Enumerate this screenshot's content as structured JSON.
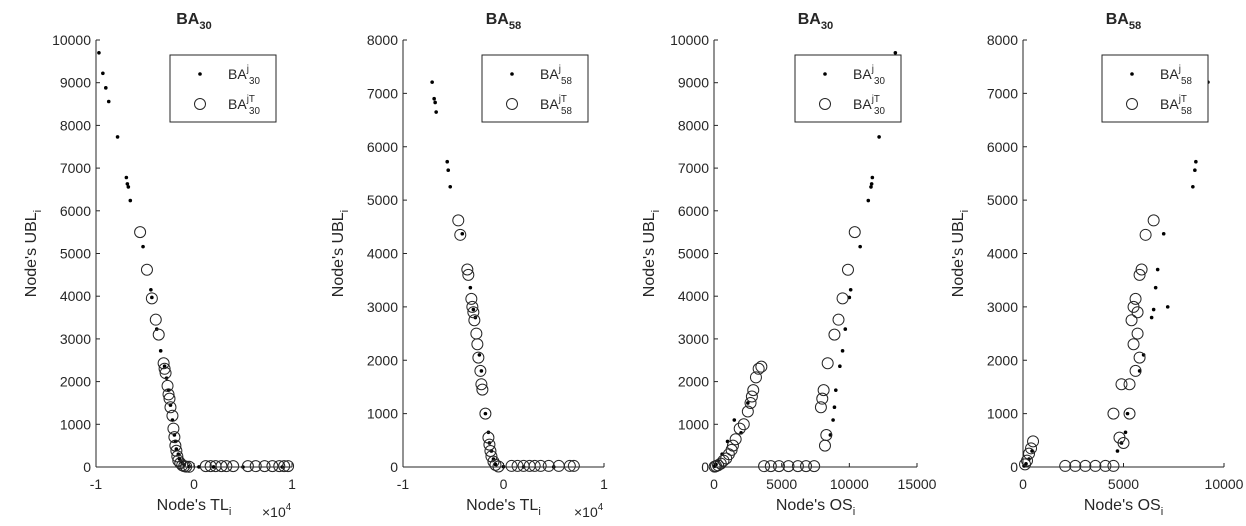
{
  "chart_data": [
    {
      "type": "scatter",
      "title": "BA",
      "title_sub": "30",
      "xlabel": "Node's TL",
      "xlabel_sub": "i",
      "x_multiplier": "×10",
      "x_multiplier_exp": "4",
      "ylabel": "Node's UBL",
      "ylabel_sub": "i",
      "xlim": [
        -1,
        1
      ],
      "ylim": [
        0,
        10000
      ],
      "xticks": [
        "-1",
        "0",
        "1"
      ],
      "yticks": [
        "0",
        "1000",
        "2000",
        "3000",
        "4000",
        "5000",
        "6000",
        "7000",
        "8000",
        "9000",
        "10000"
      ],
      "legend_position": "top-right",
      "series": [
        {
          "name": "BA",
          "name_sup": "j",
          "name_sub": "30",
          "marker": "dot",
          "points": [
            [
              -0.97,
              9700
            ],
            [
              -0.93,
              9220
            ],
            [
              -0.9,
              8880
            ],
            [
              -0.87,
              8560
            ],
            [
              -0.78,
              7730
            ],
            [
              -0.69,
              6780
            ],
            [
              -0.68,
              6630
            ],
            [
              -0.67,
              6560
            ],
            [
              -0.65,
              6240
            ],
            [
              -0.52,
              5160
            ],
            [
              -0.44,
              4150
            ],
            [
              -0.43,
              3970
            ],
            [
              -0.38,
              3230
            ],
            [
              -0.34,
              2720
            ],
            [
              -0.3,
              2360
            ],
            [
              -0.28,
              2080
            ],
            [
              -0.26,
              1800
            ],
            [
              -0.24,
              1450
            ],
            [
              -0.22,
              1100
            ],
            [
              -0.2,
              750
            ],
            [
              -0.19,
              600
            ],
            [
              -0.18,
              420
            ],
            [
              -0.16,
              300
            ],
            [
              -0.15,
              200
            ],
            [
              -0.13,
              120
            ],
            [
              -0.1,
              50
            ],
            [
              -0.05,
              10
            ],
            [
              0.05,
              2
            ],
            [
              0.2,
              1
            ],
            [
              0.5,
              0
            ],
            [
              0.9,
              0
            ]
          ]
        },
        {
          "name": "BA",
          "name_sup": "jT",
          "name_sub": "30",
          "marker": "circle",
          "points": [
            [
              -0.55,
              5500
            ],
            [
              -0.48,
              4620
            ],
            [
              -0.43,
              3950
            ],
            [
              -0.39,
              3450
            ],
            [
              -0.36,
              3100
            ],
            [
              -0.31,
              2430
            ],
            [
              -0.3,
              2300
            ],
            [
              -0.29,
              2200
            ],
            [
              -0.27,
              1900
            ],
            [
              -0.26,
              1700
            ],
            [
              -0.25,
              1600
            ],
            [
              -0.24,
              1400
            ],
            [
              -0.22,
              1200
            ],
            [
              -0.21,
              900
            ],
            [
              -0.2,
              700
            ],
            [
              -0.19,
              500
            ],
            [
              -0.18,
              380
            ],
            [
              -0.17,
              250
            ],
            [
              -0.16,
              150
            ],
            [
              -0.14,
              90
            ],
            [
              -0.12,
              40
            ],
            [
              -0.1,
              20
            ],
            [
              -0.08,
              10
            ],
            [
              -0.05,
              5
            ],
            [
              0.12,
              20
            ],
            [
              0.17,
              20
            ],
            [
              0.22,
              20
            ],
            [
              0.28,
              20
            ],
            [
              0.33,
              20
            ],
            [
              0.4,
              20
            ],
            [
              0.55,
              20
            ],
            [
              0.63,
              20
            ],
            [
              0.72,
              20
            ],
            [
              0.8,
              20
            ],
            [
              0.87,
              20
            ],
            [
              0.92,
              20
            ],
            [
              0.96,
              20
            ]
          ]
        }
      ]
    },
    {
      "type": "scatter",
      "title": "BA",
      "title_sub": "58",
      "xlabel": "Node's TL",
      "xlabel_sub": "i",
      "x_multiplier": "×10",
      "x_multiplier_exp": "4",
      "ylabel": "Node's UBL",
      "ylabel_sub": "i",
      "xlim": [
        -1,
        1
      ],
      "ylim": [
        0,
        8000
      ],
      "xticks": [
        "-1",
        "0",
        "1"
      ],
      "yticks": [
        "0",
        "1000",
        "2000",
        "3000",
        "4000",
        "5000",
        "6000",
        "7000",
        "8000"
      ],
      "legend_position": "top-right",
      "series": [
        {
          "name": "BA",
          "name_sup": "j",
          "name_sub": "58",
          "marker": "dot",
          "points": [
            [
              -0.71,
              7210
            ],
            [
              -0.69,
              6900
            ],
            [
              -0.68,
              6830
            ],
            [
              -0.67,
              6650
            ],
            [
              -0.56,
              5720
            ],
            [
              -0.55,
              5560
            ],
            [
              -0.53,
              5250
            ],
            [
              -0.41,
              4370
            ],
            [
              -0.33,
              3360
            ],
            [
              -0.3,
              2950
            ],
            [
              -0.28,
              2800
            ],
            [
              -0.24,
              2100
            ],
            [
              -0.22,
              1800
            ],
            [
              -0.18,
              1000
            ],
            [
              -0.15,
              650
            ],
            [
              -0.14,
              450
            ],
            [
              -0.12,
              300
            ],
            [
              -0.1,
              150
            ],
            [
              -0.08,
              50
            ],
            [
              0,
              5
            ],
            [
              0.2,
              2
            ],
            [
              0.5,
              1
            ]
          ]
        },
        {
          "name": "BA",
          "name_sup": "jT",
          "name_sub": "58",
          "marker": "circle",
          "points": [
            [
              -0.45,
              4620
            ],
            [
              -0.43,
              4350
            ],
            [
              -0.36,
              3700
            ],
            [
              -0.35,
              3600
            ],
            [
              -0.32,
              3150
            ],
            [
              -0.31,
              3000
            ],
            [
              -0.3,
              2900
            ],
            [
              -0.29,
              2750
            ],
            [
              -0.27,
              2500
            ],
            [
              -0.26,
              2300
            ],
            [
              -0.25,
              2050
            ],
            [
              -0.23,
              1800
            ],
            [
              -0.22,
              1550
            ],
            [
              -0.21,
              1450
            ],
            [
              -0.18,
              1000
            ],
            [
              -0.15,
              550
            ],
            [
              -0.14,
              420
            ],
            [
              -0.13,
              300
            ],
            [
              -0.12,
              200
            ],
            [
              -0.1,
              100
            ],
            [
              -0.08,
              40
            ],
            [
              -0.05,
              10
            ],
            [
              0.08,
              20
            ],
            [
              0.14,
              20
            ],
            [
              0.2,
              20
            ],
            [
              0.26,
              20
            ],
            [
              0.31,
              20
            ],
            [
              0.37,
              20
            ],
            [
              0.45,
              20
            ],
            [
              0.55,
              20
            ],
            [
              0.66,
              20
            ],
            [
              0.7,
              20
            ]
          ]
        }
      ]
    },
    {
      "type": "scatter",
      "title": "BA",
      "title_sub": "30",
      "xlabel": "Node's OS",
      "xlabel_sub": "i",
      "ylabel": "Node's UBL",
      "ylabel_sub": "i",
      "xlim": [
        0,
        15000
      ],
      "ylim": [
        0,
        10000
      ],
      "xticks": [
        "0",
        "5000",
        "10000",
        "15000"
      ],
      "yticks": [
        "0",
        "1000",
        "2000",
        "3000",
        "4000",
        "5000",
        "6000",
        "7000",
        "8000",
        "9000",
        "10000"
      ],
      "legend_position": "top-right",
      "series": [
        {
          "name": "BA",
          "name_sup": "j",
          "name_sub": "30",
          "marker": "dot",
          "points": [
            [
              13400,
              9700
            ],
            [
              13100,
              9220
            ],
            [
              12900,
              8880
            ],
            [
              12800,
              8560
            ],
            [
              12200,
              7730
            ],
            [
              11700,
              6780
            ],
            [
              11650,
              6630
            ],
            [
              11600,
              6560
            ],
            [
              11400,
              6240
            ],
            [
              10800,
              5160
            ],
            [
              10100,
              4150
            ],
            [
              10000,
              3970
            ],
            [
              9700,
              3230
            ],
            [
              9500,
              2720
            ],
            [
              9300,
              2360
            ],
            [
              9000,
              1800
            ],
            [
              8900,
              1400
            ],
            [
              8800,
              1100
            ],
            [
              8600,
              750
            ],
            [
              1500,
              1100
            ],
            [
              2500,
              1500
            ],
            [
              2000,
              800
            ],
            [
              1000,
              600
            ],
            [
              600,
              300
            ],
            [
              300,
              150
            ],
            [
              150,
              60
            ],
            [
              50,
              20
            ]
          ]
        },
        {
          "name": "BA",
          "name_sup": "jT",
          "name_sub": "30",
          "marker": "circle",
          "points": [
            [
              10400,
              5500
            ],
            [
              9900,
              4620
            ],
            [
              9500,
              3950
            ],
            [
              9200,
              3450
            ],
            [
              8900,
              3100
            ],
            [
              8400,
              2430
            ],
            [
              8100,
              1800
            ],
            [
              8000,
              1600
            ],
            [
              7900,
              1400
            ],
            [
              8300,
              750
            ],
            [
              8200,
              500
            ],
            [
              3500,
              2350
            ],
            [
              3300,
              2300
            ],
            [
              3100,
              2100
            ],
            [
              2900,
              1800
            ],
            [
              2800,
              1650
            ],
            [
              2700,
              1500
            ],
            [
              2500,
              1300
            ],
            [
              2200,
              1000
            ],
            [
              1900,
              900
            ],
            [
              1600,
              650
            ],
            [
              1400,
              500
            ],
            [
              1300,
              400
            ],
            [
              1100,
              300
            ],
            [
              900,
              200
            ],
            [
              700,
              150
            ],
            [
              500,
              80
            ],
            [
              300,
              40
            ],
            [
              150,
              20
            ],
            [
              50,
              10
            ],
            [
              3700,
              20
            ],
            [
              4200,
              20
            ],
            [
              4800,
              20
            ],
            [
              5500,
              20
            ],
            [
              6200,
              20
            ],
            [
              6800,
              20
            ],
            [
              7400,
              20
            ]
          ]
        }
      ]
    },
    {
      "type": "scatter",
      "title": "BA",
      "title_sub": "58",
      "xlabel": "Node's OS",
      "xlabel_sub": "i",
      "ylabel": "Node's UBL",
      "ylabel_sub": "i",
      "xlim": [
        0,
        10000
      ],
      "ylim": [
        0,
        8000
      ],
      "xticks": [
        "0",
        "5000",
        "10000"
      ],
      "yticks": [
        "0",
        "1000",
        "2000",
        "3000",
        "4000",
        "5000",
        "6000",
        "7000",
        "8000"
      ],
      "legend_position": "top-right",
      "series": [
        {
          "name": "BA",
          "name_sup": "j",
          "name_sub": "58",
          "marker": "dot",
          "points": [
            [
              9200,
              7210
            ],
            [
              9100,
              6900
            ],
            [
              9050,
              6830
            ],
            [
              9000,
              6650
            ],
            [
              8600,
              5720
            ],
            [
              8550,
              5560
            ],
            [
              8450,
              5250
            ],
            [
              7000,
              4370
            ],
            [
              6700,
              3700
            ],
            [
              6600,
              3360
            ],
            [
              7200,
              3000
            ],
            [
              6500,
              2950
            ],
            [
              6400,
              2800
            ],
            [
              6000,
              2100
            ],
            [
              5800,
              1800
            ],
            [
              5200,
              1000
            ],
            [
              5100,
              650
            ],
            [
              4900,
              450
            ],
            [
              4700,
              300
            ],
            [
              450,
              300
            ],
            [
              300,
              150
            ],
            [
              150,
              60
            ],
            [
              50,
              20
            ]
          ]
        },
        {
          "name": "BA",
          "name_sup": "jT",
          "name_sub": "58",
          "marker": "circle",
          "points": [
            [
              6500,
              4620
            ],
            [
              6100,
              4350
            ],
            [
              5900,
              3700
            ],
            [
              5800,
              3600
            ],
            [
              5600,
              3150
            ],
            [
              5500,
              3000
            ],
            [
              5700,
              2900
            ],
            [
              5400,
              2750
            ],
            [
              5700,
              2500
            ],
            [
              5500,
              2300
            ],
            [
              5800,
              2050
            ],
            [
              5600,
              1800
            ],
            [
              5300,
              1550
            ],
            [
              4900,
              1550
            ],
            [
              4500,
              1000
            ],
            [
              5300,
              1000
            ],
            [
              4800,
              550
            ],
            [
              5000,
              450
            ],
            [
              500,
              480
            ],
            [
              400,
              350
            ],
            [
              300,
              250
            ],
            [
              200,
              120
            ],
            [
              100,
              50
            ],
            [
              2100,
              20
            ],
            [
              2600,
              20
            ],
            [
              3100,
              20
            ],
            [
              3600,
              20
            ],
            [
              4100,
              20
            ],
            [
              4500,
              20
            ]
          ]
        }
      ]
    }
  ]
}
